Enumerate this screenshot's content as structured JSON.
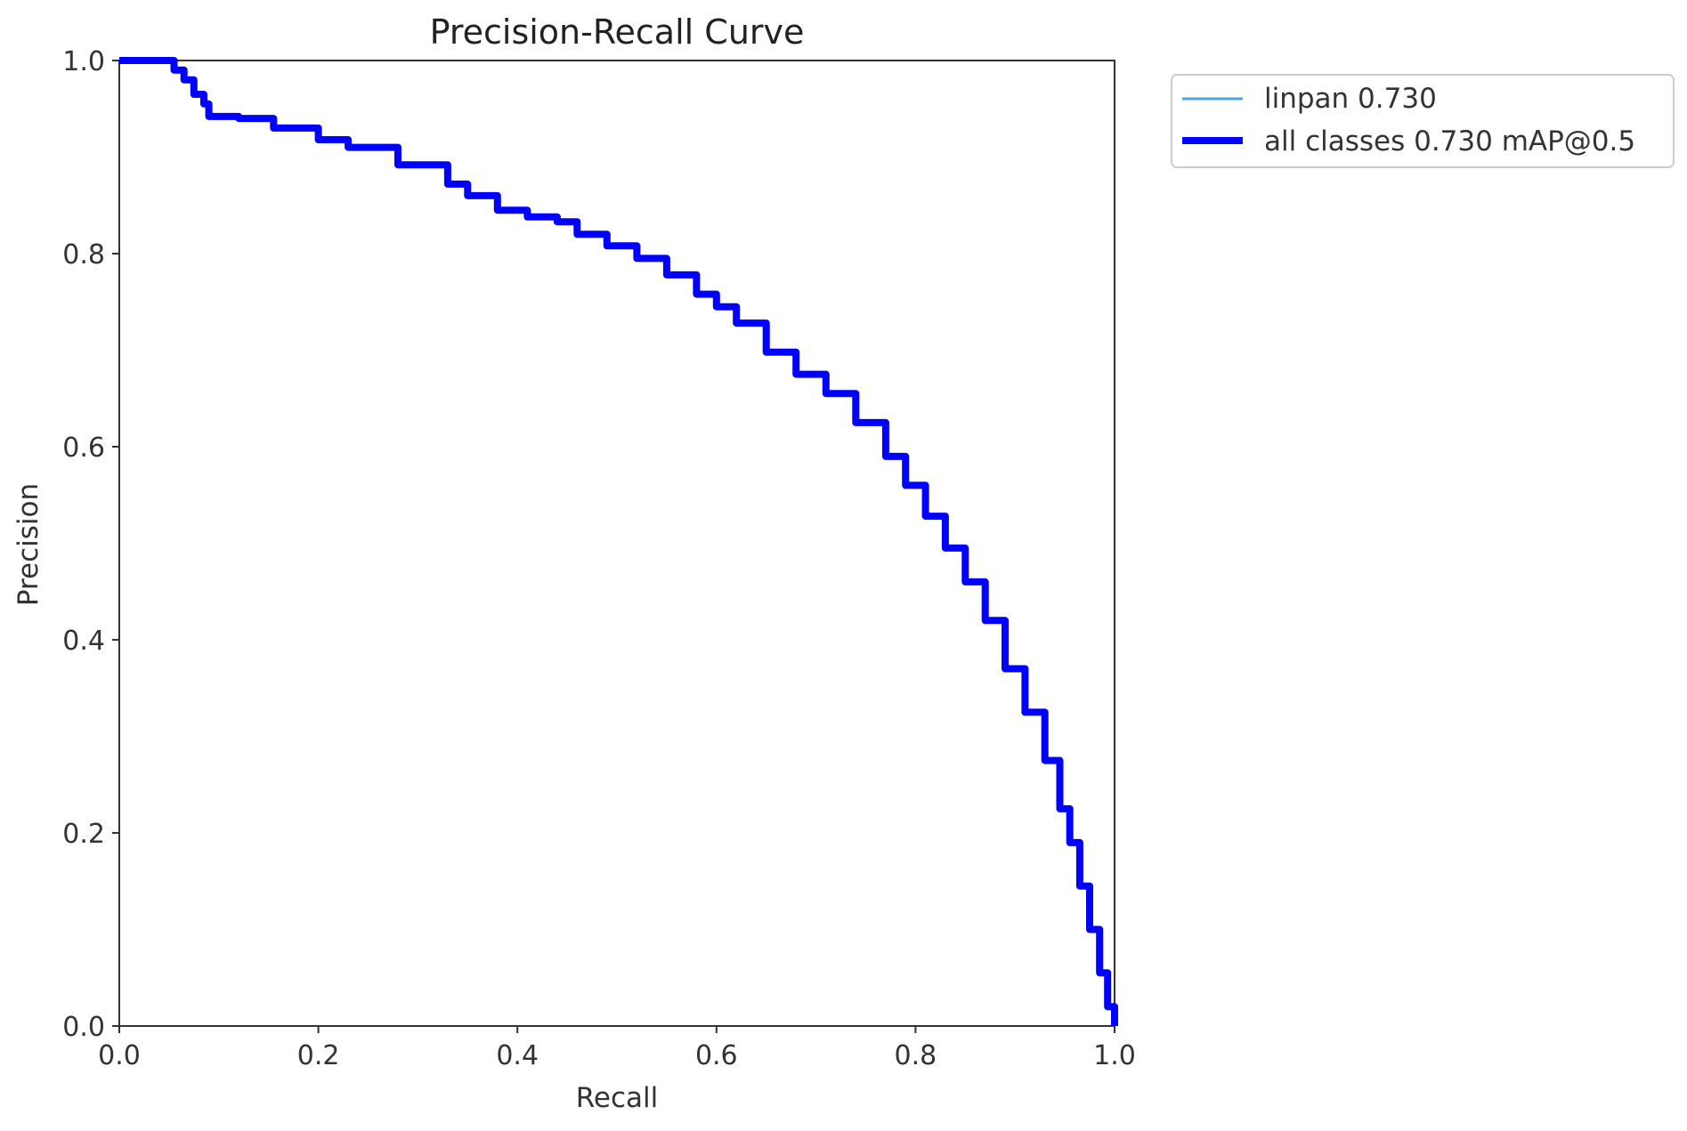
{
  "chart_data": {
    "type": "line",
    "title": "Precision-Recall Curve",
    "xlabel": "Recall",
    "ylabel": "Precision",
    "xlim": [
      0,
      1
    ],
    "ylim": [
      0,
      1
    ],
    "xticks": [
      "0.0",
      "0.2",
      "0.4",
      "0.6",
      "0.8",
      "1.0"
    ],
    "yticks": [
      "0.0",
      "0.2",
      "0.4",
      "0.6",
      "0.8",
      "1.0"
    ],
    "grid": false,
    "legend_position": "outside-top-right",
    "series": [
      {
        "name": "linpan 0.730",
        "color": "#4fa3e0",
        "x": [
          0.0,
          0.05,
          0.055,
          0.065,
          0.075,
          0.085,
          0.09,
          0.12,
          0.155,
          0.2,
          0.23,
          0.28,
          0.33,
          0.35,
          0.38,
          0.41,
          0.44,
          0.46,
          0.49,
          0.52,
          0.55,
          0.58,
          0.6,
          0.62,
          0.65,
          0.68,
          0.71,
          0.74,
          0.77,
          0.79,
          0.81,
          0.83,
          0.85,
          0.87,
          0.89,
          0.91,
          0.93,
          0.945,
          0.955,
          0.965,
          0.975,
          0.985,
          0.993,
          1.0
        ],
        "y": [
          1.0,
          1.0,
          0.99,
          0.98,
          0.965,
          0.955,
          0.942,
          0.94,
          0.93,
          0.918,
          0.91,
          0.892,
          0.872,
          0.86,
          0.845,
          0.838,
          0.833,
          0.82,
          0.808,
          0.795,
          0.778,
          0.758,
          0.745,
          0.728,
          0.698,
          0.675,
          0.655,
          0.625,
          0.59,
          0.56,
          0.528,
          0.495,
          0.46,
          0.42,
          0.37,
          0.325,
          0.275,
          0.225,
          0.19,
          0.145,
          0.1,
          0.055,
          0.02,
          0.0
        ]
      },
      {
        "name": "all classes 0.730 mAP@0.5",
        "color": "#0000ff",
        "x": [
          0.0,
          0.05,
          0.055,
          0.065,
          0.075,
          0.085,
          0.09,
          0.12,
          0.155,
          0.2,
          0.23,
          0.28,
          0.33,
          0.35,
          0.38,
          0.41,
          0.44,
          0.46,
          0.49,
          0.52,
          0.55,
          0.58,
          0.6,
          0.62,
          0.65,
          0.68,
          0.71,
          0.74,
          0.77,
          0.79,
          0.81,
          0.83,
          0.85,
          0.87,
          0.89,
          0.91,
          0.93,
          0.945,
          0.955,
          0.965,
          0.975,
          0.985,
          0.993,
          1.0
        ],
        "y": [
          1.0,
          1.0,
          0.99,
          0.98,
          0.965,
          0.955,
          0.942,
          0.94,
          0.93,
          0.918,
          0.91,
          0.892,
          0.872,
          0.86,
          0.845,
          0.838,
          0.833,
          0.82,
          0.808,
          0.795,
          0.778,
          0.758,
          0.745,
          0.728,
          0.698,
          0.675,
          0.655,
          0.625,
          0.59,
          0.56,
          0.528,
          0.495,
          0.46,
          0.42,
          0.37,
          0.325,
          0.275,
          0.225,
          0.19,
          0.145,
          0.1,
          0.055,
          0.02,
          0.0
        ]
      }
    ]
  }
}
